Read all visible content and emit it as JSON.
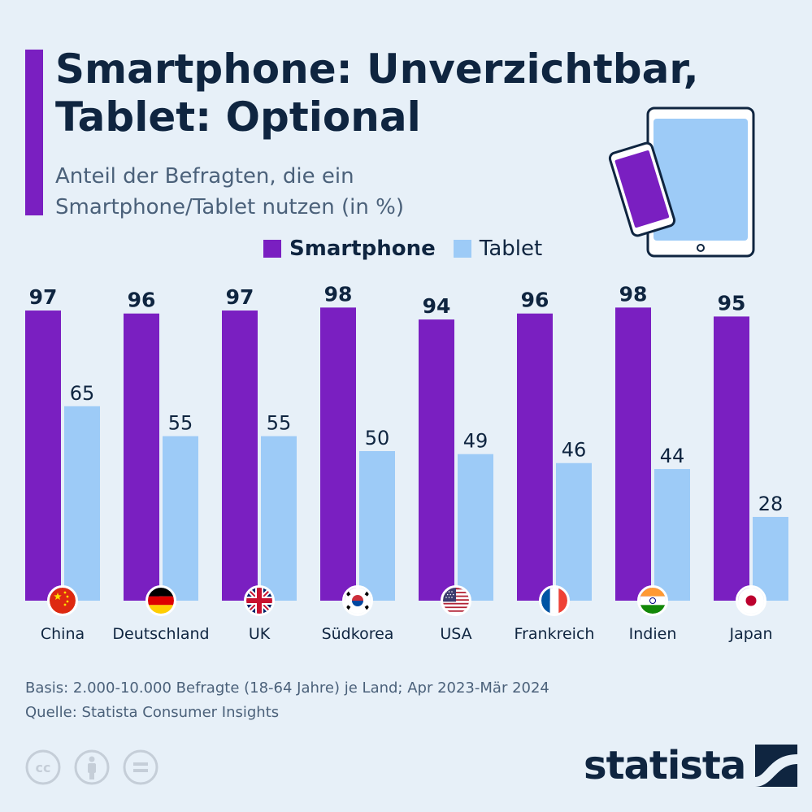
{
  "header": {
    "title": "Smartphone: Unverzichtbar,\nTablet: Optional",
    "subtitle": "Anteil der Befragten, die ein\nSmartphone/Tablet nutzen (in %)"
  },
  "colors": {
    "accent": "#7a1fc1",
    "smartphone": "#7a1fc1",
    "tablet": "#9dcbf7",
    "text": "#0f2540",
    "muted": "#4b617a",
    "background": "#e7f0f8"
  },
  "legend": {
    "smartphone": "Smartphone",
    "tablet": "Tablet",
    "position": "top"
  },
  "chart_data": {
    "type": "bar",
    "categories": [
      "China",
      "Deutschland",
      "UK",
      "Südkorea",
      "USA",
      "Frankreich",
      "Indien",
      "Japan"
    ],
    "series": [
      {
        "name": "Smartphone",
        "values": [
          97,
          96,
          97,
          98,
          94,
          96,
          98,
          95
        ]
      },
      {
        "name": "Tablet",
        "values": [
          65,
          55,
          55,
          50,
          49,
          46,
          44,
          28
        ]
      }
    ],
    "ylim": [
      0,
      100
    ],
    "grid": false,
    "data_labels": true,
    "category_icons": [
      "flag-china-icon",
      "flag-germany-icon",
      "flag-uk-icon",
      "flag-south-korea-icon",
      "flag-usa-icon",
      "flag-france-icon",
      "flag-india-icon",
      "flag-japan-icon"
    ]
  },
  "footer": {
    "basis": "Basis: 2.000-10.000 Befragte (18-64 Jahre) je Land; Apr 2023-Mär 2024",
    "source": "Quelle: Statista Consumer Insights",
    "logo_text": "statista",
    "license_icons": [
      "cc-icon",
      "attribution-icon",
      "no-derivatives-icon"
    ]
  }
}
